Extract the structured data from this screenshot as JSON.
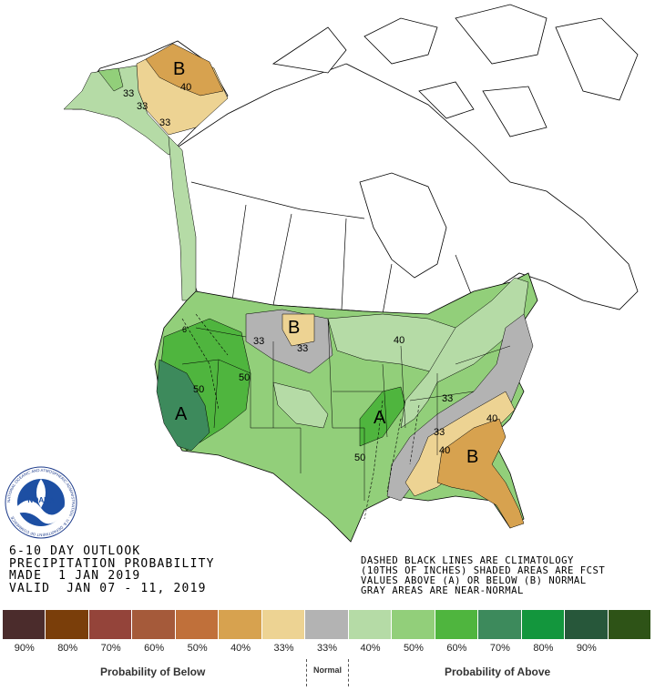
{
  "header": {
    "title_lines": [
      "6-10 DAY OUTLOOK",
      "PRECIPITATION PROBABILITY",
      "MADE  1 JAN 2019",
      "VALID  JAN 07 - 11, 2019"
    ]
  },
  "note_lines": [
    "DASHED BLACK LINES ARE CLIMATOLOGY",
    "(10THS OF INCHES) SHADED AREAS ARE FCST",
    "VALUES ABOVE (A) OR BELOW (B) NORMAL",
    "GRAY AREAS ARE NEAR-NORMAL"
  ],
  "map_labels": [
    {
      "text": "B"
    },
    {
      "text": "40"
    },
    {
      "text": "33"
    },
    {
      "text": "33"
    },
    {
      "text": "33"
    },
    {
      "text": "B"
    },
    {
      "text": "33"
    },
    {
      "text": "33"
    },
    {
      "text": "50"
    },
    {
      "text": "50"
    },
    {
      "text": "A"
    },
    {
      "text": "40"
    },
    {
      "text": "A"
    },
    {
      "text": "50"
    },
    {
      "text": "33"
    },
    {
      "text": "33"
    },
    {
      "text": "40"
    },
    {
      "text": "40"
    },
    {
      "text": "B"
    },
    {
      "text": "6"
    }
  ],
  "logo": {
    "text": "NOARA",
    "ring_text": "NATIONAL OCEANIC AND ATMOSPHERIC ADMINISTRATION · U.S. DEPARTMENT OF COMMERCE"
  },
  "legend": {
    "swatches": [
      "#4b2c2c",
      "#7a3e0a",
      "#94443a",
      "#a55a3a",
      "#c0703a",
      "#d7a24f",
      "#edd393",
      "#b3b3b3",
      "#b5dba6",
      "#92cf7a",
      "#4fb53e",
      "#3d8a5c",
      "#13963d",
      "#27573a",
      "#2e5317"
    ],
    "ticks": [
      "90%",
      "80%",
      "70%",
      "60%",
      "50%",
      "40%",
      "33%",
      "33%",
      "40%",
      "50%",
      "60%",
      "70%",
      "80%",
      "90%",
      ""
    ],
    "below_label": "Probability of Below",
    "normal_label": "Normal",
    "above_label": "Probability of Above"
  },
  "colors": {
    "below_33": "#edd393",
    "below_40": "#d7a24f",
    "normal": "#b3b3b3",
    "above_33": "#b5dba6",
    "above_40": "#92cf7a",
    "above_50": "#4fb53e",
    "above_60": "#3d8a5c"
  }
}
